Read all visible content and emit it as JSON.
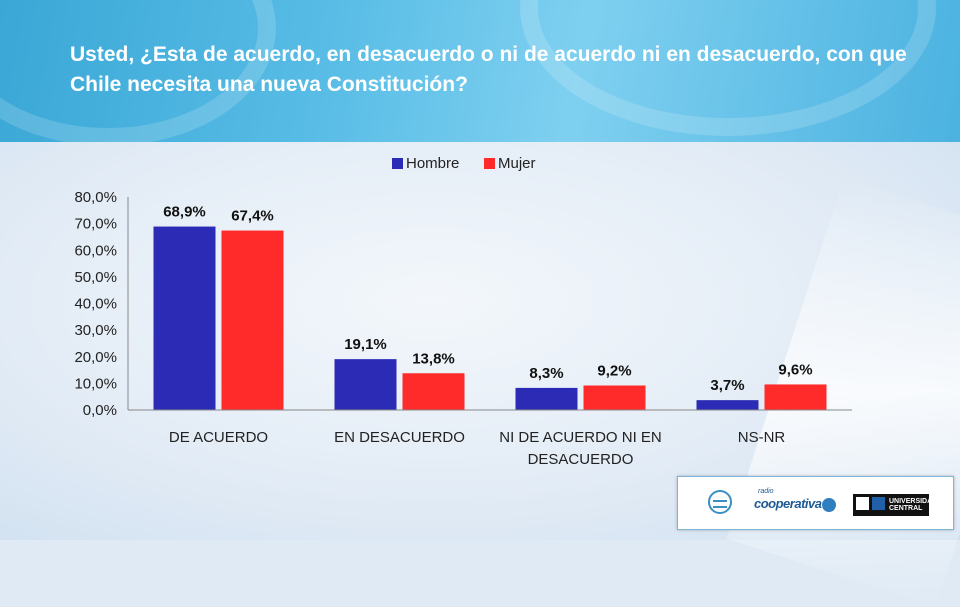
{
  "title": "Usted, ¿Esta de acuerdo, en desacuerdo o ni de acuerdo ni en desacuerdo, con que Chile necesita una nueva Constitución?",
  "colors": {
    "hombre": "#2b2bb5",
    "mujer": "#ff2a2a"
  },
  "chart_data": {
    "type": "bar",
    "categories": [
      [
        "DE ACUERDO"
      ],
      [
        "EN DESACUERDO"
      ],
      [
        "NI DE ACUERDO NI EN",
        "DESACUERDO"
      ],
      [
        "NS-NR"
      ]
    ],
    "series": [
      {
        "name": "Hombre",
        "values": [
          68.9,
          19.1,
          8.3,
          3.7
        ],
        "labels": [
          "68,9%",
          "19,1%",
          "8,3%",
          "3,7%"
        ]
      },
      {
        "name": "Mujer",
        "values": [
          67.4,
          13.8,
          9.2,
          9.6
        ],
        "labels": [
          "67,4%",
          "13,8%",
          "9,2%",
          "9,6%"
        ]
      }
    ],
    "yticks": [
      "0,0%",
      "10,0%",
      "20,0%",
      "30,0%",
      "40,0%",
      "50,0%",
      "60,0%",
      "70,0%",
      "80,0%"
    ],
    "ylim": [
      0,
      80
    ],
    "legend": "top",
    "grid": false
  },
  "logos": {
    "radio_small": "radio",
    "cooperativa": "cooperativa",
    "ucentral": "UNIVERSIDAD CENTRAL"
  }
}
